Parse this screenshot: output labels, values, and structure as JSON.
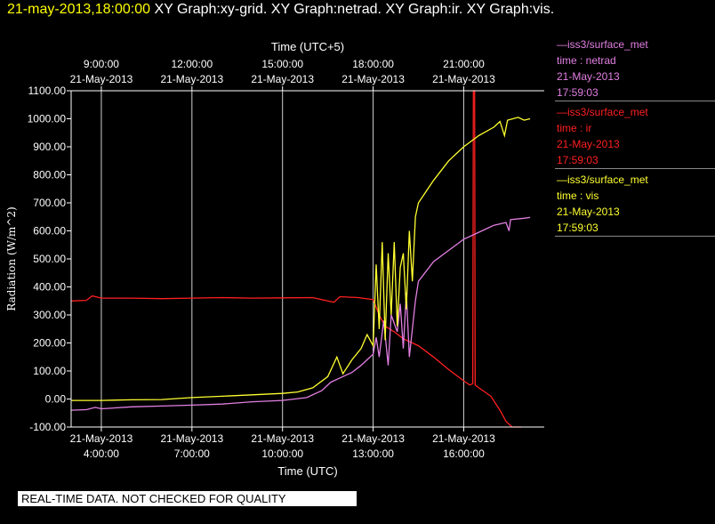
{
  "header": {
    "date_label": "21-may-2013,18:00:00",
    "graph_titles": "XY Graph:xy-grid.  XY Graph:netrad.  XY Graph:ir.  XY Graph:vis."
  },
  "legend": [
    {
      "station": "iss3/surface_met",
      "series_label": "time : netrad",
      "date": "21-May-2013",
      "time": "17:59:03",
      "color": "#e27fe2"
    },
    {
      "station": "iss3/surface_met",
      "series_label": "time : ir",
      "date": "21-May-2013",
      "time": "17:59:03",
      "color": "#ff2020"
    },
    {
      "station": "iss3/surface_met",
      "series_label": "time : vis",
      "date": "21-May-2013",
      "time": "17:59:03",
      "color": "#ffff30"
    }
  ],
  "disclaimer": "REAL-TIME DATA. NOT CHECKED FOR QUALITY",
  "chart_data": {
    "type": "line",
    "title": "",
    "xlabel": "Time (UTC)",
    "x2label": "Time (UTC+5)",
    "ylabel": "Radiation (W/m^2)",
    "xlim": [
      3.0,
      18.667
    ],
    "ylim": [
      -100,
      1100
    ],
    "grid": true,
    "x_ticks": [
      {
        "x": 4,
        "top_time": "9:00:00",
        "top_date": "21-May-2013",
        "bottom_date": "21-May-2013",
        "bottom_time": "4:00:00"
      },
      {
        "x": 7,
        "top_time": "12:00:00",
        "top_date": "21-May-2013",
        "bottom_date": "21-May-2013",
        "bottom_time": "7:00:00"
      },
      {
        "x": 10,
        "top_time": "15:00:00",
        "top_date": "21-May-2013",
        "bottom_date": "21-May-2013",
        "bottom_time": "10:00:00"
      },
      {
        "x": 13,
        "top_time": "18:00:00",
        "top_date": "21-May-2013",
        "bottom_date": "21-May-2013",
        "bottom_time": "13:00:00"
      },
      {
        "x": 16,
        "top_time": "21:00:00",
        "top_date": "21-May-2013",
        "bottom_date": "21-May-2013",
        "bottom_time": "16:00:00"
      }
    ],
    "y_ticks": [
      {
        "y": 1100,
        "label": "1100.00"
      },
      {
        "y": 1000,
        "label": "1000.00"
      },
      {
        "y": 900,
        "label": "900.00"
      },
      {
        "y": 800,
        "label": "800.00"
      },
      {
        "y": 700,
        "label": "700.00"
      },
      {
        "y": 600,
        "label": "600.00"
      },
      {
        "y": 500,
        "label": "500.00"
      },
      {
        "y": 400,
        "label": "400.00"
      },
      {
        "y": 300,
        "label": "300.00"
      },
      {
        "y": 200,
        "label": "200.00"
      },
      {
        "y": 100,
        "label": "100.00"
      },
      {
        "y": 0,
        "label": "0.00"
      },
      {
        "y": -100,
        "label": "-100.00"
      }
    ],
    "series": [
      {
        "key": "ir",
        "color": "#ff2020",
        "points": [
          [
            3.0,
            350
          ],
          [
            3.5,
            352
          ],
          [
            3.7,
            368
          ],
          [
            4.0,
            360
          ],
          [
            5.0,
            360
          ],
          [
            6.0,
            358
          ],
          [
            7.0,
            360
          ],
          [
            8.0,
            362
          ],
          [
            9.0,
            360
          ],
          [
            10.0,
            361
          ],
          [
            11.0,
            362
          ],
          [
            11.7,
            345
          ],
          [
            11.9,
            365
          ],
          [
            12.5,
            362
          ],
          [
            13.0,
            355
          ],
          [
            13.2,
            300
          ],
          [
            13.4,
            260
          ],
          [
            13.7,
            240
          ],
          [
            14.0,
            215
          ],
          [
            14.5,
            190
          ],
          [
            15.0,
            150
          ],
          [
            15.5,
            105
          ],
          [
            16.0,
            65
          ],
          [
            16.2,
            50
          ],
          [
            16.3,
            55
          ],
          [
            16.32,
            1100
          ],
          [
            16.36,
            1100
          ],
          [
            16.38,
            50
          ],
          [
            16.5,
            40
          ],
          [
            16.9,
            10
          ],
          [
            17.2,
            -40
          ],
          [
            17.4,
            -80
          ],
          [
            17.6,
            -100
          ],
          [
            17.9,
            -100
          ]
        ]
      },
      {
        "key": "netrad",
        "color": "#e27fe2",
        "points": [
          [
            3.0,
            -40
          ],
          [
            3.5,
            -38
          ],
          [
            3.8,
            -30
          ],
          [
            4.0,
            -35
          ],
          [
            5.0,
            -28
          ],
          [
            6.0,
            -25
          ],
          [
            7.0,
            -22
          ],
          [
            8.0,
            -18
          ],
          [
            9.0,
            -10
          ],
          [
            10.0,
            -5
          ],
          [
            10.8,
            5
          ],
          [
            11.3,
            30
          ],
          [
            11.6,
            60
          ],
          [
            12.0,
            80
          ],
          [
            12.3,
            95
          ],
          [
            12.6,
            120
          ],
          [
            12.8,
            140
          ],
          [
            13.0,
            160
          ],
          [
            13.1,
            220
          ],
          [
            13.2,
            150
          ],
          [
            13.35,
            280
          ],
          [
            13.5,
            120
          ],
          [
            13.6,
            300
          ],
          [
            13.8,
            240
          ],
          [
            13.9,
            340
          ],
          [
            14.0,
            180
          ],
          [
            14.1,
            380
          ],
          [
            14.2,
            150
          ],
          [
            14.4,
            350
          ],
          [
            14.5,
            420
          ],
          [
            15.0,
            490
          ],
          [
            15.5,
            530
          ],
          [
            16.0,
            570
          ],
          [
            16.5,
            595
          ],
          [
            17.0,
            620
          ],
          [
            17.4,
            630
          ],
          [
            17.5,
            600
          ],
          [
            17.55,
            640
          ],
          [
            18.0,
            645
          ],
          [
            18.2,
            648
          ]
        ]
      },
      {
        "key": "vis",
        "color": "#ffff30",
        "points": [
          [
            3.0,
            -5
          ],
          [
            4.0,
            -5
          ],
          [
            5.0,
            -3
          ],
          [
            6.0,
            -2
          ],
          [
            7.0,
            5
          ],
          [
            8.0,
            10
          ],
          [
            9.0,
            15
          ],
          [
            10.0,
            20
          ],
          [
            10.5,
            25
          ],
          [
            11.0,
            40
          ],
          [
            11.5,
            80
          ],
          [
            11.8,
            150
          ],
          [
            12.0,
            90
          ],
          [
            12.3,
            140
          ],
          [
            12.6,
            180
          ],
          [
            12.8,
            230
          ],
          [
            13.0,
            190
          ],
          [
            13.1,
            480
          ],
          [
            13.2,
            250
          ],
          [
            13.3,
            560
          ],
          [
            13.4,
            210
          ],
          [
            13.5,
            520
          ],
          [
            13.6,
            300
          ],
          [
            13.7,
            560
          ],
          [
            13.8,
            260
          ],
          [
            13.9,
            470
          ],
          [
            14.0,
            520
          ],
          [
            14.1,
            320
          ],
          [
            14.2,
            600
          ],
          [
            14.3,
            420
          ],
          [
            14.4,
            650
          ],
          [
            14.5,
            700
          ],
          [
            15.0,
            780
          ],
          [
            15.5,
            850
          ],
          [
            16.0,
            900
          ],
          [
            16.5,
            940
          ],
          [
            17.0,
            970
          ],
          [
            17.2,
            990
          ],
          [
            17.35,
            940
          ],
          [
            17.45,
            995
          ],
          [
            17.8,
            1005
          ],
          [
            18.0,
            995
          ],
          [
            18.2,
            1000
          ]
        ]
      }
    ]
  }
}
